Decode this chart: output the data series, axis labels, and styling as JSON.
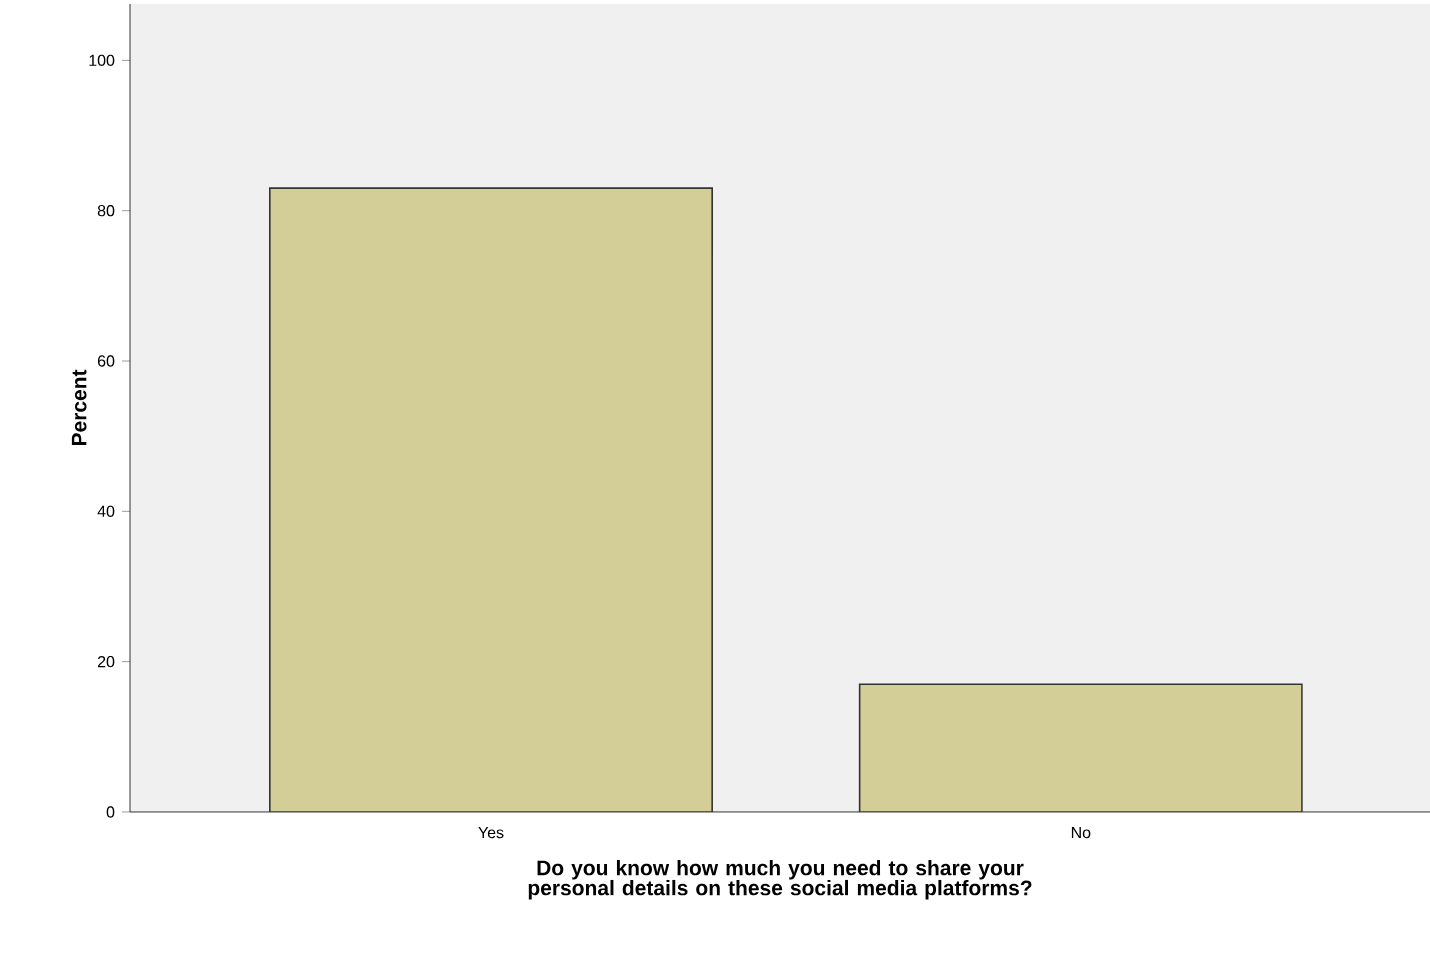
{
  "chart_data": {
    "type": "bar",
    "xlabel": "Do you know how much you need to share your personal details on these social media platforms?",
    "ylabel": "Percent",
    "categories": [
      "Yes",
      "No"
    ],
    "values": [
      83,
      17
    ],
    "color": "#d3ce97",
    "ylim": [
      0,
      107.5
    ],
    "yticks": [
      0,
      20,
      40,
      60,
      80,
      100
    ],
    "grid": false
  }
}
